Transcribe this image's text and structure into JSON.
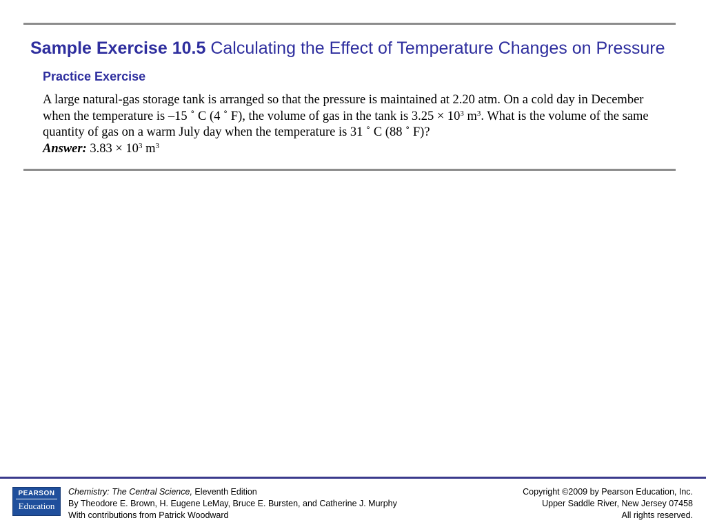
{
  "title": {
    "bold": "Sample Exercise 10.5",
    "rest": "Calculating the Effect of Temperature Changes on Pressure"
  },
  "subtitle": "Practice Exercise",
  "problem": {
    "part1": "A large natural-gas storage tank is arranged so that the pressure is maintained at 2.20 atm. On a cold day in December when the temperature is –15 ˚ C (4 ˚ F), the volume of gas in the tank is 3.25 × 10",
    "exp1": "3",
    "part2": " m",
    "exp2": "3",
    "part3": ". What is the volume of the same quantity of gas on a warm July day when the temperature is 31 ˚ C (88 ˚ F)?"
  },
  "answer": {
    "label": "Answer:",
    "value": " 3.83 × 10",
    "exp1": "3",
    "unit": " m",
    "exp2": "3"
  },
  "footer": {
    "logo_top": "PEARSON",
    "logo_bottom": "Education",
    "book_title": "Chemistry: The Central Science,",
    "edition": " Eleventh Edition",
    "authors": "By Theodore E. Brown, H. Eugene LeMay, Bruce E. Bursten, and Catherine J. Murphy",
    "contributions": "With contributions from Patrick Woodward",
    "copyright": "Copyright ©2009 by Pearson Education, Inc.",
    "address": "Upper Saddle River, New Jersey 07458",
    "rights": "All rights reserved."
  }
}
